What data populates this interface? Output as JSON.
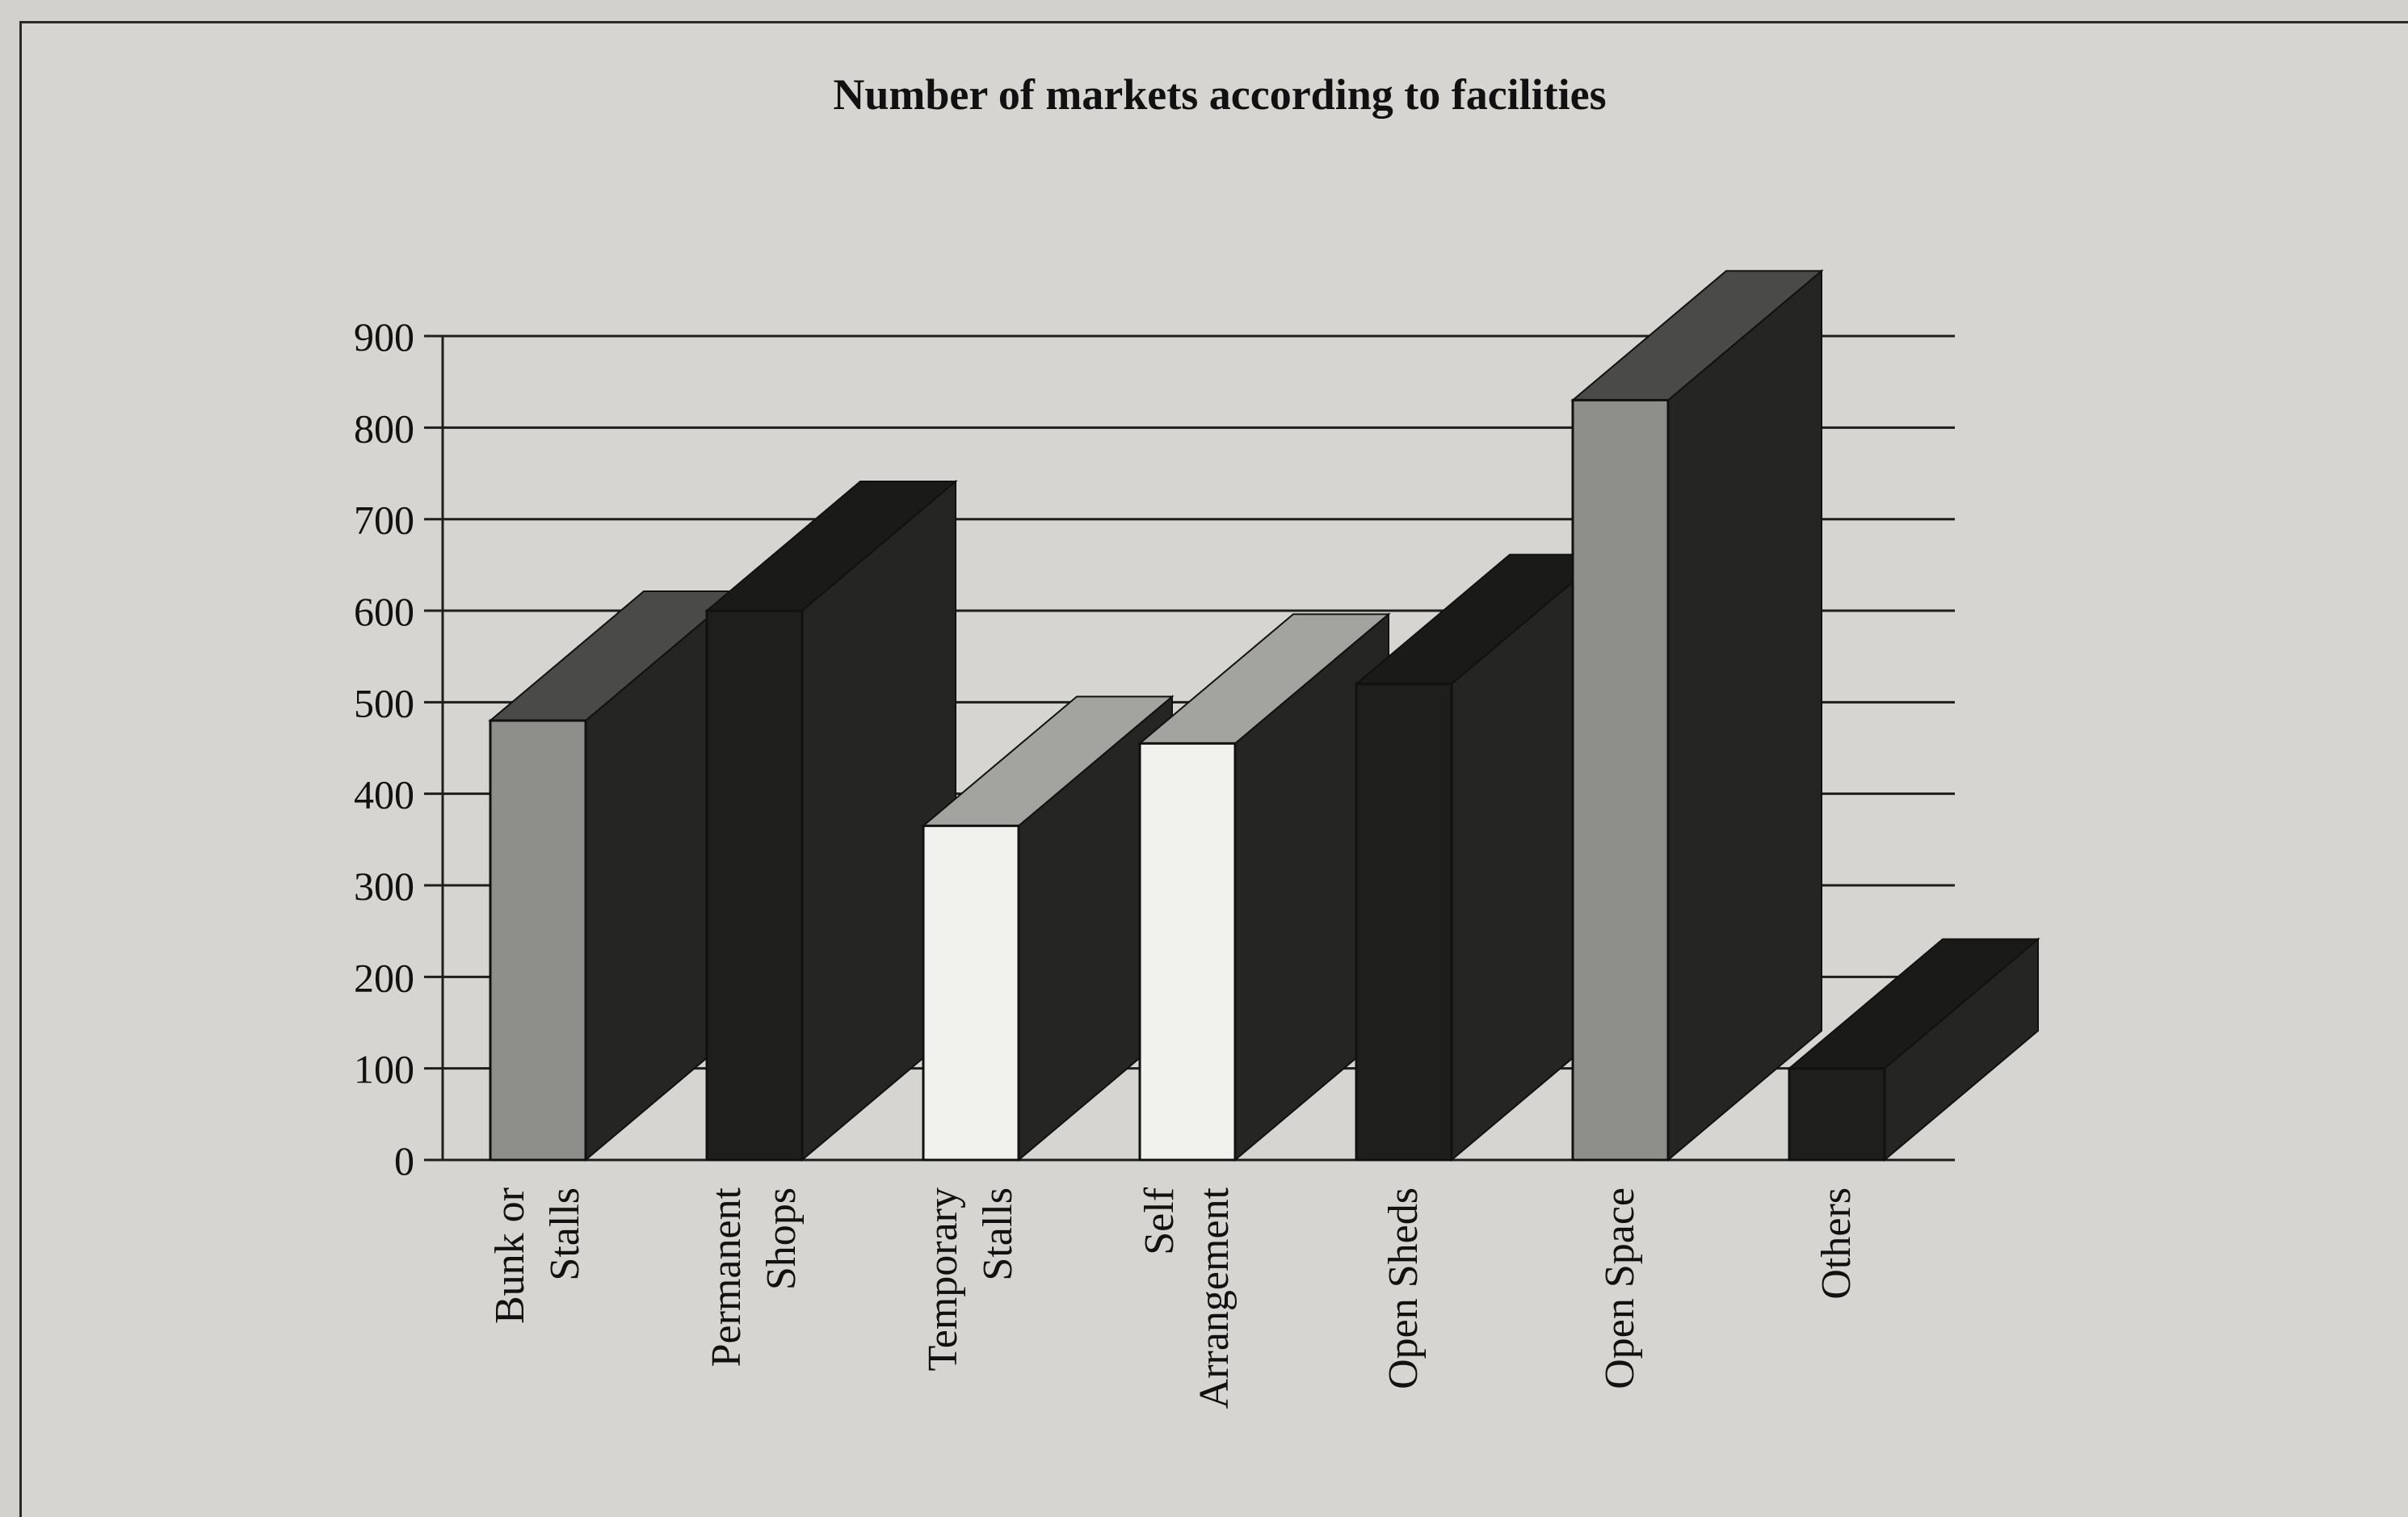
{
  "chart_data": {
    "type": "bar",
    "title": "Number of markets according to facilities",
    "xlabel": "",
    "ylabel": "",
    "categories": [
      [
        "Bunk or",
        "Stalls"
      ],
      [
        "Permanent",
        "Shops"
      ],
      [
        "Temporary",
        "Stalls"
      ],
      [
        "Self",
        "Arrangement"
      ],
      [
        "Open Sheds"
      ],
      [
        "Open Space"
      ],
      [
        "Others"
      ]
    ],
    "values": [
      480,
      600,
      365,
      455,
      520,
      830,
      100
    ],
    "ylim": [
      0,
      900
    ],
    "yticks": [
      "0",
      "100",
      "200",
      "300",
      "400",
      "500",
      "600",
      "700",
      "800",
      "900"
    ],
    "grid": true,
    "legend": "none",
    "colors": {
      "front": [
        "#8e8e8a",
        "#1e1e1c",
        "#f1f1ee",
        "#f1f1ee",
        "#1e1e1c",
        "#8e8e8a",
        "#1e1e1c"
      ],
      "top": [
        "#4a4a48",
        "#1a1a18",
        "#a3a3a0",
        "#a3a3a0",
        "#1a1a18",
        "#4a4a48",
        "#1a1a18"
      ],
      "side": "#252523",
      "grid": "#1e1e1e",
      "background": "#d6d5d1"
    }
  }
}
